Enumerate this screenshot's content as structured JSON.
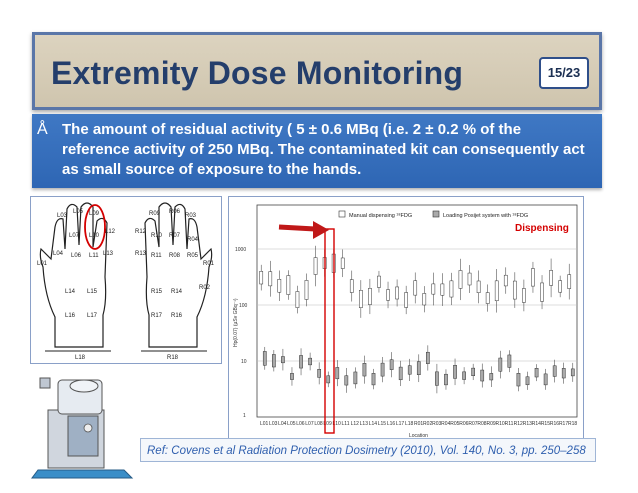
{
  "slide": {
    "title": "Extremity Dose Monitoring",
    "page": "15/23"
  },
  "bullet": {
    "glyph": "Å",
    "text": "The amount of residual activity ( 5 ± 0.6 MBq (i.e. 2 ± 0.2 % of the reference activity of 250 MBq. The contaminated kit can consequently act as small source of exposure to the hands."
  },
  "hands": {
    "left_labels": [
      "L03",
      "L05",
      "L09",
      "L07",
      "L10",
      "L12",
      "L01",
      "L04",
      "L06",
      "L11",
      "L13",
      "L14",
      "L15",
      "L16",
      "L17",
      "L18"
    ],
    "right_labels": [
      "R09",
      "R06",
      "R03",
      "R12",
      "R10",
      "R07",
      "R04",
      "R13",
      "R11",
      "R08",
      "R05",
      "R01",
      "R15",
      "R14",
      "R02",
      "R17",
      "R16",
      "R18"
    ]
  },
  "chart": {
    "legend_manual": "Manual dispensing ¹⁸FDG",
    "legend_posijet": "Loading Posijet system with ¹⁸FDG",
    "annotation": "Dispensing",
    "ylabel": "Hp(0.07) (µSv GBq⁻¹)",
    "xlabel": "Location",
    "yticks": [
      "1000",
      "100",
      "10",
      "1"
    ],
    "x_locations": [
      "L01",
      "L03",
      "L04",
      "L05",
      "L06",
      "L07",
      "L08",
      "L09",
      "L10",
      "L11",
      "L12",
      "L13",
      "L14",
      "L15",
      "L16",
      "L17",
      "L18",
      "R01",
      "R02",
      "R03",
      "R04",
      "R05",
      "R06",
      "R07",
      "R08",
      "R09",
      "R10",
      "R11",
      "R12",
      "R13",
      "R14",
      "R15",
      "R16",
      "R17",
      "R18"
    ]
  },
  "reference": {
    "text": "Ref: Covens et al Radiation Protection Dosimetry (2010), Vol. 140, No. 3, pp. 250–258"
  },
  "colors": {
    "title_border": "#5a76a8",
    "bullet_bg": "#3573c0",
    "annotation": "#d40000"
  }
}
